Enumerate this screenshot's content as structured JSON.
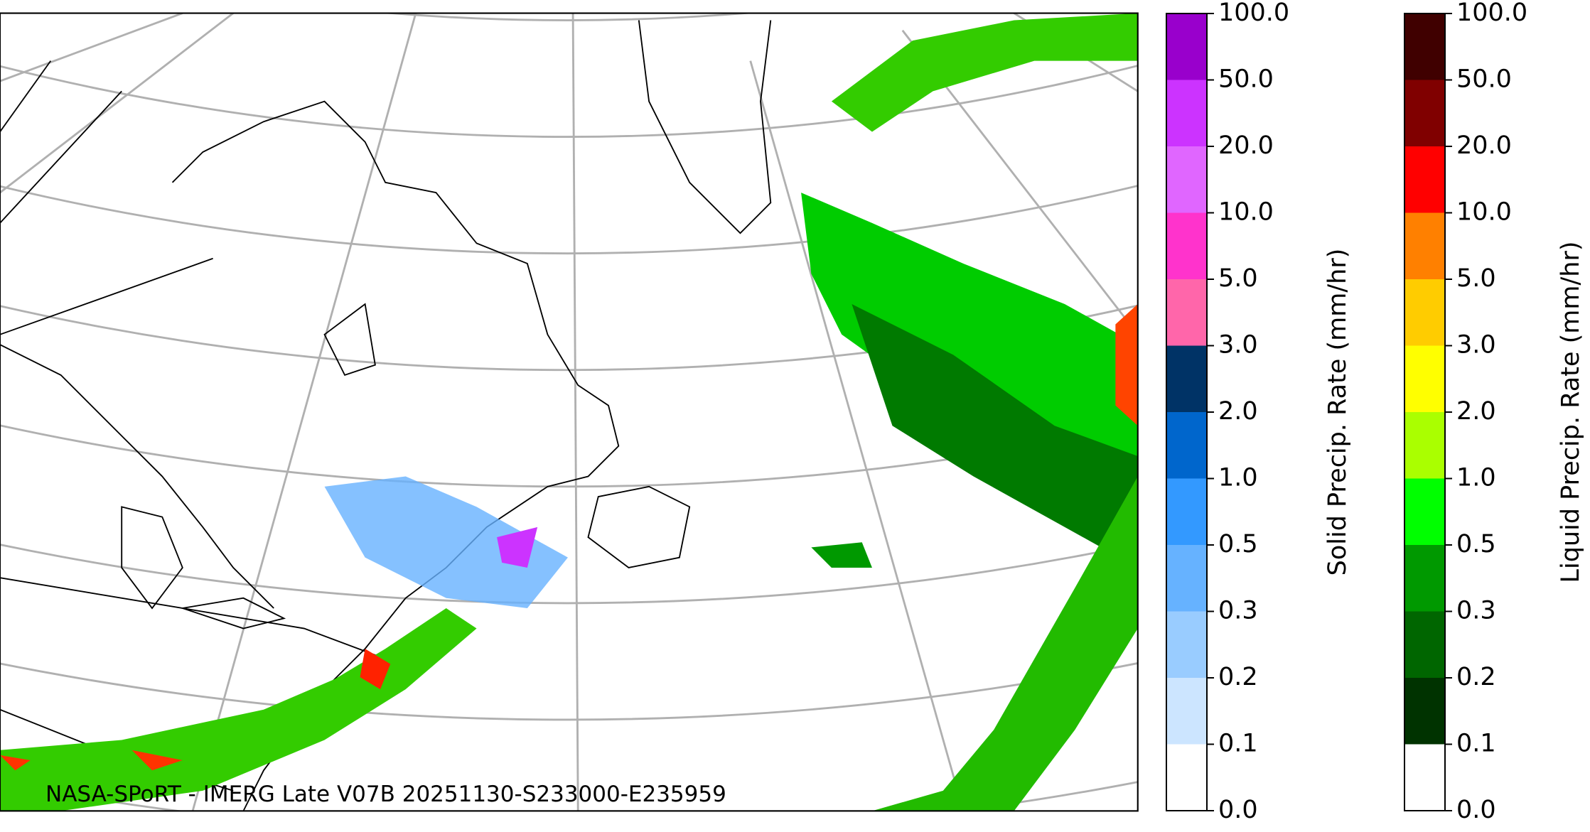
{
  "map": {
    "caption": "NASA-SPoRT - IMERG Late V07B 20251130-S233000-E235959"
  },
  "colorbars": [
    {
      "label": "Solid Precip. Rate (mm/hr)",
      "ticks": [
        {
          "value": 0,
          "label": "0.0"
        },
        {
          "value": 0.1,
          "label": "0.1"
        },
        {
          "value": 0.2,
          "label": "0.2"
        },
        {
          "value": 0.3,
          "label": "0.3"
        },
        {
          "value": 0.5,
          "label": "0.5"
        },
        {
          "value": 1,
          "label": "1.0"
        },
        {
          "value": 2,
          "label": "2.0"
        },
        {
          "value": 3,
          "label": "3.0"
        },
        {
          "value": 5,
          "label": "5.0"
        },
        {
          "value": 10,
          "label": "10.0"
        },
        {
          "value": 20,
          "label": "20.0"
        },
        {
          "value": 50,
          "label": "50.0"
        },
        {
          "value": 100,
          "label": "100.0"
        }
      ],
      "colors": [
        "#ffffff",
        "#cce5ff",
        "#99ccff",
        "#66b2ff",
        "#3399ff",
        "#0066cc",
        "#003366",
        "#ff66aa",
        "#ff33cc",
        "#e066ff",
        "#cc33ff",
        "#9900cc"
      ]
    },
    {
      "label": "Liquid Precip. Rate (mm/hr)",
      "ticks": [
        {
          "value": 0,
          "label": "0.0"
        },
        {
          "value": 0.1,
          "label": "0.1"
        },
        {
          "value": 0.2,
          "label": "0.2"
        },
        {
          "value": 0.3,
          "label": "0.3"
        },
        {
          "value": 0.5,
          "label": "0.5"
        },
        {
          "value": 1,
          "label": "1.0"
        },
        {
          "value": 2,
          "label": "2.0"
        },
        {
          "value": 3,
          "label": "3.0"
        },
        {
          "value": 5,
          "label": "5.0"
        },
        {
          "value": 10,
          "label": "10.0"
        },
        {
          "value": 20,
          "label": "20.0"
        },
        {
          "value": 50,
          "label": "50.0"
        },
        {
          "value": 100,
          "label": "100.0"
        }
      ],
      "colors": [
        "#ffffff",
        "#003300",
        "#006600",
        "#009900",
        "#00ff00",
        "#aaff00",
        "#ffff00",
        "#ffcc00",
        "#ff8000",
        "#ff0000",
        "#800000",
        "#400000"
      ]
    }
  ]
}
